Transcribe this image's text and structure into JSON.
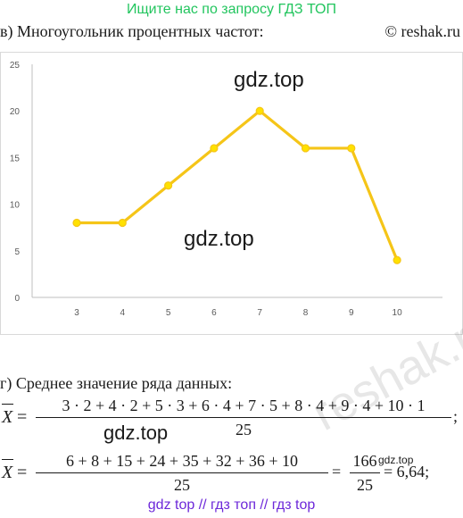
{
  "header": {
    "banner": "Ищите нас по запросу ГДЗ ТОП"
  },
  "section_b": {
    "label": "в) Многоугольник процентных частот:",
    "site": "© reshak.ru"
  },
  "watermarks": {
    "chart_top": "gdz.top",
    "chart_mid": "gdz.top",
    "formula": "gdz.top",
    "small": "gdz.top",
    "reshak": "reshak.ru"
  },
  "chart_data": {
    "type": "line",
    "x": [
      3,
      4,
      5,
      6,
      7,
      8,
      9,
      10
    ],
    "series": [
      {
        "values": [
          8,
          8,
          12,
          16,
          20,
          16,
          16,
          4
        ],
        "color": "#f5c518"
      }
    ],
    "x_ticks": [
      "3",
      "4",
      "5",
      "6",
      "7",
      "8",
      "9",
      "10"
    ],
    "y_ticks": [
      "0",
      "5",
      "10",
      "15",
      "20",
      "25"
    ],
    "ylim": [
      0,
      25
    ],
    "grid": false,
    "title": "",
    "xlabel": "",
    "ylabel": ""
  },
  "section_g": {
    "label": "г) Среднее значение ряда данных:"
  },
  "formula1": {
    "lhs": "X",
    "eq": "=",
    "numerator": "3 · 2 + 4 · 2 + 5 · 3 + 6 · 4 + 7 · 5 + 8 · 4 + 9 · 4 + 10 · 1",
    "denominator": "25",
    "end": ";"
  },
  "formula2": {
    "lhs": "X",
    "eq": "=",
    "numerator": "6 + 8 + 15 + 24 + 35 + 32 + 36 + 10",
    "denominator": "25",
    "eq2": "=",
    "frac2_num": "166",
    "frac2_den": "25",
    "result": "= 6,64;"
  },
  "footer": {
    "text": "gdz top  //  гдз топ  //  гдз top"
  }
}
